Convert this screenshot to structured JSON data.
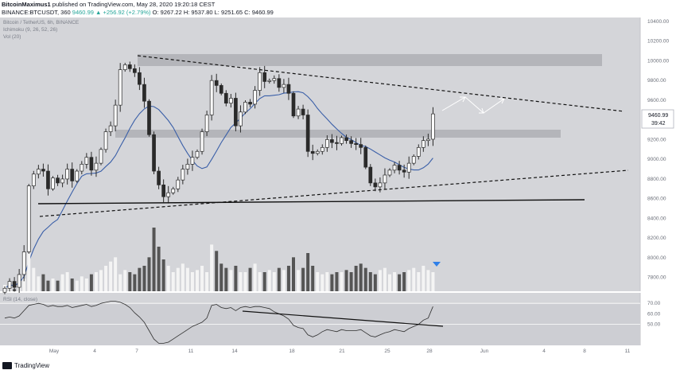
{
  "header": {
    "author": "BitcoinMaximus1",
    "published_text": "published on TradingView.com, May 28, 2020 19:20:18 CEST",
    "symbol": "BINANCE:BTCUSDT, 360",
    "change": "9460.99 ▲ +256.92 (+2.79%)",
    "ohlc": "O: 9267.22 H: 9537.80 L: 9251.65 C: 9460.99"
  },
  "legend": {
    "symbol_title": "Bitcoin / TetherUS, 6h, BINANCE",
    "ichimoku": "Ichimoku (9, 26, 52, 26)",
    "vol": "Vol (20)",
    "rsi": "RSI (14, close)"
  },
  "price_tag": {
    "price": "9460.99",
    "countdown": "39:42"
  },
  "footer": {
    "brand": "TradingView"
  },
  "colors": {
    "plot_bg": "#d4d5d9",
    "candle": "#2a2a2a",
    "candle_up": "#ffffff",
    "ma": "#3a5fa8",
    "zone": "#b4b5ba",
    "rsi_line": "#2f2f2f",
    "volume_up": "#f4f4f4",
    "volume_down": "#555555",
    "marker": "#2f7fe8"
  },
  "chart_data": {
    "type": "candlestick",
    "y_ticks": [
      "10400.00",
      "10200.00",
      "10000.00",
      "9800.00",
      "9600.00",
      "9400.00",
      "9200.00",
      "9000.00",
      "8800.00",
      "8600.00",
      "8400.00",
      "8200.00",
      "8000.00",
      "7800.00"
    ],
    "x_ticks": [
      "May",
      "4",
      "7",
      "11",
      "14",
      "18",
      "21",
      "25",
      "28",
      "Jun",
      "4",
      "8",
      "11"
    ],
    "rsi_ticks": [
      "70.00",
      "60.00",
      "50.00"
    ],
    "price_range": [
      7660,
      10440
    ],
    "close_series": [
      7690,
      7760,
      7700,
      7830,
      8060,
      8730,
      8850,
      8900,
      8880,
      8700,
      8810,
      8760,
      8800,
      8900,
      8780,
      8880,
      8950,
      9020,
      8890,
      8960,
      9100,
      9280,
      9340,
      9550,
      9910,
      9960,
      9920,
      9880,
      9760,
      9590,
      9250,
      8880,
      8740,
      8620,
      8660,
      8700,
      8790,
      8900,
      8950,
      9020,
      9080,
      9280,
      9450,
      9800,
      9750,
      9670,
      9570,
      9620,
      9340,
      9480,
      9580,
      9560,
      9700,
      9880,
      9790,
      9800,
      9820,
      9730,
      9760,
      9670,
      9440,
      9510,
      9450,
      9080,
      9060,
      9080,
      9120,
      9200,
      9170,
      9160,
      9220,
      9190,
      9160,
      9150,
      9120,
      8920,
      8760,
      8720,
      8760,
      8840,
      8890,
      8940,
      8890,
      8870,
      8960,
      9030,
      9120,
      9190,
      9204,
      9461
    ],
    "volume_series": [
      3,
      2,
      1,
      2,
      6,
      18,
      11,
      7,
      8,
      5,
      6,
      5,
      8,
      9,
      6,
      5,
      7,
      6,
      8,
      9,
      10,
      12,
      14,
      16,
      8,
      10,
      9,
      8,
      11,
      12,
      16,
      30,
      21,
      15,
      12,
      9,
      11,
      13,
      11,
      9,
      10,
      12,
      9,
      22,
      19,
      13,
      11,
      10,
      12,
      9,
      9,
      11,
      13,
      9,
      9,
      10,
      9,
      11,
      10,
      12,
      16,
      10,
      11,
      18,
      12,
      9,
      8,
      9,
      8,
      9,
      9,
      10,
      9,
      12,
      13,
      11,
      9,
      8,
      10,
      11,
      8,
      9,
      8,
      9,
      10,
      11,
      9,
      12,
      10,
      9
    ],
    "rsi_series": [
      56,
      57,
      56,
      58,
      63,
      68,
      69,
      70,
      69,
      67,
      68,
      67,
      67,
      68,
      66,
      67,
      68,
      69,
      67,
      68,
      70,
      71,
      72,
      72,
      71,
      69,
      66,
      61,
      57,
      52,
      44,
      36,
      32,
      32,
      33,
      36,
      39,
      42,
      45,
      48,
      50,
      52,
      56,
      68,
      69,
      66,
      65,
      66,
      63,
      66,
      67,
      66,
      67,
      67,
      66,
      65,
      62,
      60,
      58,
      55,
      49,
      47,
      46,
      40,
      38,
      40,
      43,
      45,
      44,
      43,
      45,
      44,
      44,
      44,
      45,
      42,
      39,
      38,
      40,
      42,
      43,
      45,
      44,
      43,
      46,
      48,
      50,
      54,
      56,
      67
    ]
  }
}
